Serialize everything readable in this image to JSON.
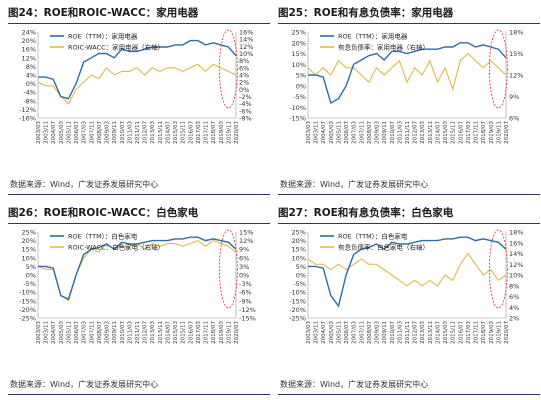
{
  "colors": {
    "roe": "#2e6da4",
    "alt": "#e0b84a",
    "highlight_ellipse": "#e04040",
    "rule": "#1f3b66"
  },
  "panels": [
    {
      "fig": "图24",
      "title": "ROE和ROIC-WACC：家用电器",
      "source": "数据来源：Wind，广发证券发展研究中心",
      "legend_position": "top-left",
      "chart_data": {
        "type": "line",
        "x": [
          "2003/03",
          "2003/11",
          "2004/07",
          "2005/03",
          "2005/11",
          "2006/07",
          "2007/03",
          "2007/11",
          "2008/07",
          "2009/03",
          "2009/11",
          "2010/07",
          "2011/03",
          "2011/11",
          "2012/07",
          "2013/03",
          "2013/11",
          "2014/07",
          "2015/03",
          "2015/11",
          "2016/07",
          "2017/03",
          "2017/11",
          "2018/07",
          "2019/03",
          "2019/11",
          "2020/07"
        ],
        "left_ticks": [
          "24%",
          "20%",
          "16%",
          "12%",
          "8%",
          "4%",
          "0%",
          "-4%",
          "-8%",
          "-12%",
          "-16%"
        ],
        "right_ticks": [
          "16%",
          "14%",
          "12%",
          "10%",
          "8%",
          "6%",
          "4%",
          "2%",
          "0%",
          "-2%",
          "-4%",
          "-6%",
          "-8%"
        ],
        "ylim_left": [
          -16,
          24
        ],
        "ylim_right": [
          -8,
          16
        ],
        "series": [
          {
            "name": "ROE（TTM）：家用电器",
            "axis": "left",
            "values": [
              3,
              3,
              2,
              -6,
              -7,
              0,
              10,
              12,
              14,
              14,
              12,
              16,
              15,
              15,
              16,
              17,
              17,
              17,
              18,
              18,
              20,
              20,
              18,
              19,
              18,
              17,
              13
            ]
          },
          {
            "name": "ROIC-WACC：家用电器（右轴）",
            "axis": "right",
            "values": [
              2,
              1,
              1,
              -2,
              -4,
              0,
              2,
              4,
              3,
              6,
              4,
              5,
              5,
              6,
              4,
              6,
              5,
              6,
              6,
              5,
              6,
              7,
              5,
              7,
              6,
              5,
              4
            ]
          }
        ]
      }
    },
    {
      "fig": "图25",
      "title": "ROE和有息负债率：家用电器",
      "source": "数据来源：Wind，广发证券发展研究中心",
      "legend_position": "top-left",
      "chart_data": {
        "type": "line",
        "x": [
          "2003/03",
          "2003/11",
          "2004/07",
          "2005/03",
          "2005/11",
          "2006/07",
          "2007/03",
          "2007/11",
          "2008/07",
          "2009/03",
          "2009/11",
          "2010/07",
          "2011/03",
          "2011/11",
          "2012/07",
          "2013/03",
          "2013/11",
          "2014/07",
          "2015/03",
          "2015/11",
          "2016/07",
          "2017/03",
          "2017/11",
          "2018/07",
          "2019/03",
          "2019/11",
          "2020/07"
        ],
        "left_ticks": [
          "25%",
          "20%",
          "15%",
          "10%",
          "5%",
          "0%",
          "-5%",
          "-10%",
          "-15%"
        ],
        "right_ticks": [
          "18%",
          "15%",
          "12%",
          "9%",
          "6%"
        ],
        "ylim_left": [
          -15,
          25
        ],
        "ylim_right": [
          6,
          18
        ],
        "series": [
          {
            "name": "ROE（TTM）：家用电器",
            "axis": "left",
            "values": [
              5,
              5,
              4,
              -8,
              -6,
              0,
              10,
              12,
              14,
              15,
              12,
              16,
              16,
              15,
              16,
              17,
              17,
              17,
              18,
              18,
              20,
              20,
              18,
              19,
              18,
              17,
              13
            ]
          },
          {
            "name": "有息负债率：家用电器（右轴）",
            "axis": "right",
            "values": [
              13,
              12,
              13,
              12,
              14,
              13,
              13,
              12,
              11,
              13,
              12,
              13,
              14,
              11,
              13,
              12,
              14,
              11,
              13,
              10,
              14,
              15,
              14,
              13,
              14,
              13,
              12
            ]
          }
        ]
      }
    },
    {
      "fig": "图26",
      "title": "ROE和ROIC-WACC：白色家电",
      "source": "数据来源：Wind，广发证券发展研究中心",
      "legend_position": "top-left",
      "chart_data": {
        "type": "line",
        "x": [
          "2003/03",
          "2003/11",
          "2004/07",
          "2005/03",
          "2005/11",
          "2006/07",
          "2007/03",
          "2007/11",
          "2008/07",
          "2009/03",
          "2009/11",
          "2010/07",
          "2011/03",
          "2011/11",
          "2012/07",
          "2013/03",
          "2013/11",
          "2014/07",
          "2015/03",
          "2015/11",
          "2016/07",
          "2017/03",
          "2017/11",
          "2018/07",
          "2019/03",
          "2019/11",
          "2020/07"
        ],
        "left_ticks": [
          "25%",
          "20%",
          "15%",
          "10%",
          "5%",
          "0%",
          "-5%",
          "-10%",
          "-15%",
          "-20%",
          "-25%"
        ],
        "right_ticks": [
          "15%",
          "12%",
          "9%",
          "6%",
          "3%",
          "0%",
          "-3%",
          "-6%",
          "-9%",
          "-12%",
          "-15%"
        ],
        "ylim_left": [
          -25,
          25
        ],
        "ylim_right": [
          -15,
          15
        ],
        "series": [
          {
            "name": "ROE（TTM）：白色家电",
            "axis": "left",
            "values": [
              5,
              5,
              4,
              -12,
              -14,
              0,
              12,
              15,
              16,
              18,
              15,
              19,
              18,
              18,
              19,
              20,
              20,
              20,
              21,
              21,
              22,
              22,
              20,
              21,
              20,
              19,
              15
            ]
          },
          {
            "name": "ROIC-WACC：白色家电（右轴）",
            "axis": "right",
            "values": [
              3,
              2,
              2,
              -7,
              -9,
              0,
              6,
              9,
              8,
              11,
              9,
              10,
              10,
              11,
              9,
              11,
              10,
              11,
              11,
              10,
              11,
              12,
              10,
              12,
              11,
              10,
              8
            ]
          }
        ]
      }
    },
    {
      "fig": "图27",
      "title": "ROE和有息负债率：白色家电",
      "source": "数据来源：Wind，广发证券发展研究中心",
      "legend_position": "top-left",
      "chart_data": {
        "type": "line",
        "x": [
          "2003/03",
          "2003/11",
          "2004/07",
          "2005/03",
          "2005/11",
          "2006/07",
          "2007/03",
          "2007/11",
          "2008/07",
          "2009/03",
          "2009/11",
          "2010/07",
          "2011/03",
          "2011/11",
          "2012/07",
          "2013/03",
          "2013/11",
          "2014/07",
          "2015/03",
          "2015/11",
          "2016/07",
          "2017/03",
          "2017/11",
          "2018/07",
          "2019/03",
          "2019/11",
          "2020/07"
        ],
        "left_ticks": [
          "25%",
          "20%",
          "15%",
          "10%",
          "5%",
          "0%",
          "-5%",
          "-10%",
          "-15%",
          "-20%",
          "-25%"
        ],
        "right_ticks": [
          "18%",
          "16%",
          "14%",
          "12%",
          "10%",
          "8%",
          "6%",
          "4%",
          "2%"
        ],
        "ylim_left": [
          -25,
          25
        ],
        "ylim_right": [
          2,
          18
        ],
        "series": [
          {
            "name": "ROE（TTM）：白色家电",
            "axis": "left",
            "values": [
              5,
              5,
              4,
              -12,
              -18,
              0,
              12,
              15,
              16,
              18,
              15,
              19,
              18,
              18,
              19,
              20,
              20,
              20,
              21,
              21,
              22,
              22,
              20,
              21,
              20,
              19,
              15
            ]
          },
          {
            "name": "有息负债率：白色家电（右轴）",
            "axis": "right",
            "values": [
              13,
              12,
              12,
              11,
              12,
              11,
              12,
              13,
              12,
              12,
              11,
              10,
              9,
              8,
              9,
              8,
              9,
              8,
              10,
              9,
              12,
              14,
              12,
              10,
              11,
              9,
              10
            ]
          }
        ]
      }
    }
  ]
}
